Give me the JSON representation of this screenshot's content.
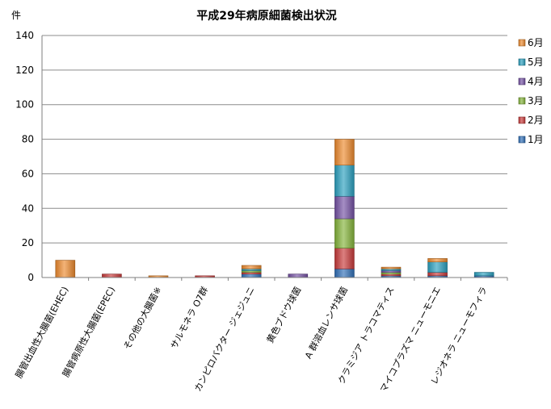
{
  "chart_data": {
    "type": "bar",
    "stacked": true,
    "title": "平成29年病原細菌検出状況",
    "ylabel": "件",
    "xlabel": "",
    "ylim": [
      0,
      140
    ],
    "yticks": [
      0,
      20,
      40,
      60,
      80,
      100,
      120,
      140
    ],
    "grid": true,
    "legend_position": "right",
    "categories": [
      "腸管出血性大腸菌(EHEC)",
      "腸管病原性大腸菌(EPEC)",
      "その他の大腸菌※",
      "サルモネラ O7群",
      "カンピロバクター ジェジュニ",
      "黄色ブドウ球菌",
      "A 群溶血レンサ球菌",
      "クラミジア トラコマティス",
      "マイコプラズマ ニューモニエ",
      "レジオネラ ニューモフィラ"
    ],
    "series": [
      {
        "name": "1月",
        "color": "#2f6fb7",
        "values": [
          0,
          0,
          0,
          0,
          2,
          0,
          5,
          1,
          1,
          1
        ]
      },
      {
        "name": "2月",
        "color": "#c83a3a",
        "values": [
          0,
          2,
          0,
          1,
          1,
          0,
          12,
          1,
          2,
          0
        ]
      },
      {
        "name": "3月",
        "color": "#84b43a",
        "values": [
          0,
          0,
          0,
          0,
          1,
          0,
          17,
          1,
          0,
          0
        ]
      },
      {
        "name": "4月",
        "color": "#7451a4",
        "values": [
          0,
          0,
          0,
          0,
          0,
          2,
          13,
          1,
          0,
          0
        ]
      },
      {
        "name": "5月",
        "color": "#2aa0bf",
        "values": [
          0,
          0,
          0,
          0,
          1,
          0,
          18,
          1,
          6,
          2
        ]
      },
      {
        "name": "6月",
        "color": "#ec8a2e",
        "values": [
          10,
          0,
          1,
          0,
          2,
          0,
          15,
          1,
          2,
          0
        ]
      }
    ]
  }
}
